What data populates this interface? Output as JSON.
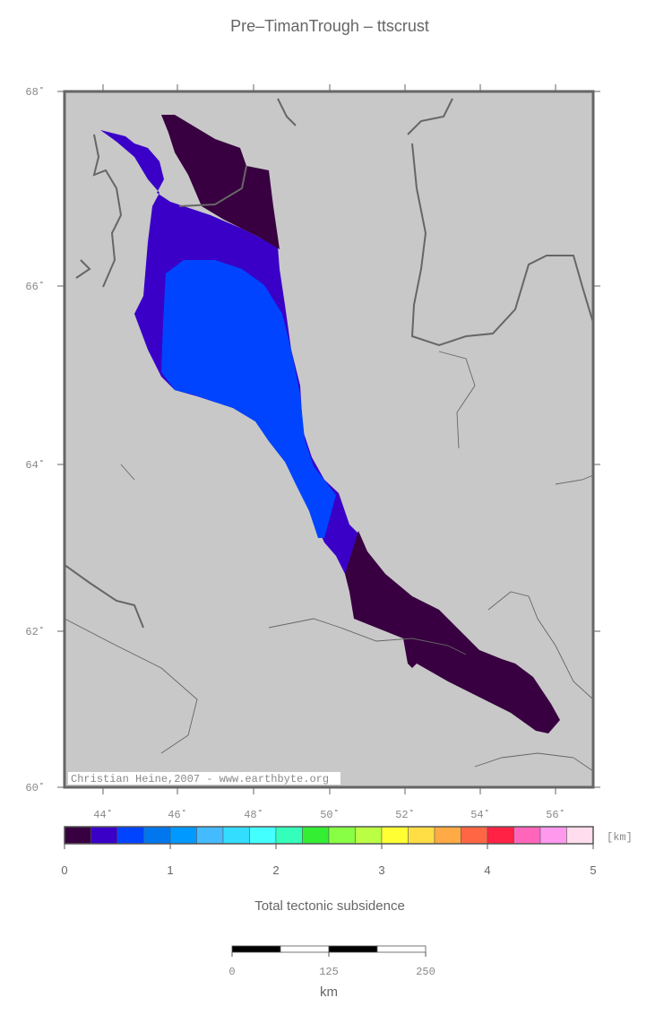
{
  "title": "Pre–TimanTrough – ttscrust",
  "map": {
    "lat_labels": [
      "68˚",
      "66˚",
      "64˚",
      "62˚",
      "60˚"
    ],
    "lon_labels": [
      "44˚",
      "46˚",
      "48˚",
      "50˚",
      "52˚",
      "54˚",
      "56˚"
    ],
    "credit": "Christian Heine,2007 - www.earthbyte.org"
  },
  "colorbar": {
    "unit": "[km]",
    "range": [
      0,
      5
    ],
    "ticks": [
      0,
      1,
      2,
      3,
      4,
      5
    ],
    "label": "Total tectonic subsidence",
    "colors": [
      "#380040",
      "#3a00c8",
      "#0044ff",
      "#0077ee",
      "#0099ff",
      "#44bbff",
      "#33ddff",
      "#44ffff",
      "#33ffbb",
      "#33ee33",
      "#88ff44",
      "#bbff44",
      "#ffff33",
      "#ffdd44",
      "#ffaa44",
      "#ff6644",
      "#ff2244",
      "#ff66bb",
      "#ff99ee",
      "#ffddee"
    ]
  },
  "scale_bar": {
    "range": [
      0,
      250
    ],
    "ticks": [
      0,
      125,
      250
    ],
    "unit": "km"
  }
}
